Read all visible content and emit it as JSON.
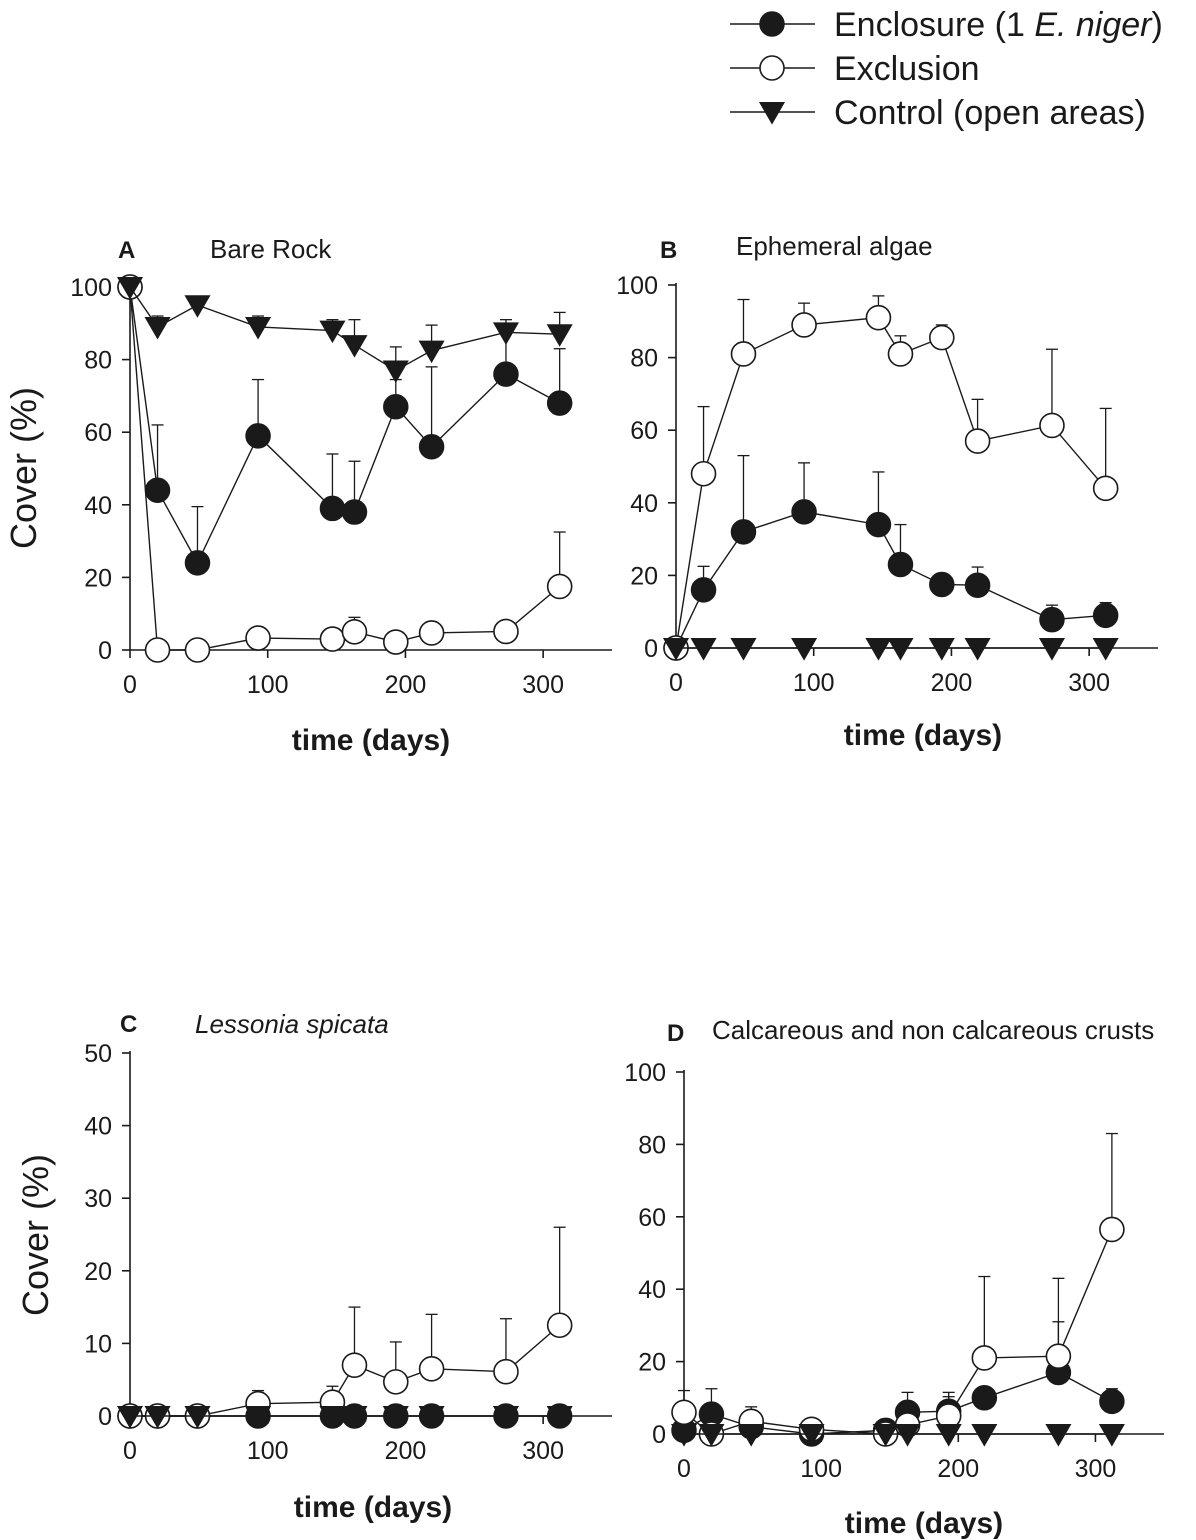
{
  "legend": {
    "placement": "top-right",
    "entries": [
      {
        "key": "enclosure",
        "label_pre": "Enclosure (1 ",
        "label_italic": "E. niger",
        "label_post": ")",
        "marker": "filled-circle"
      },
      {
        "key": "exclusion",
        "label_pre": "Exclusion",
        "label_italic": "",
        "label_post": "",
        "marker": "open-circle"
      },
      {
        "key": "control",
        "label_pre": "Control (open areas)",
        "label_italic": "",
        "label_post": "",
        "marker": "filled-down-triangle"
      }
    ]
  },
  "colors": {
    "ink": "#1a1a1a",
    "open_fill": "#ffffff"
  },
  "chart_data": [
    {
      "panel": "A",
      "title": "Bare Rock",
      "title_italic": false,
      "type": "line",
      "xlabel": "time (days)",
      "ylabel": "Cover (%)",
      "xlim": [
        0,
        350
      ],
      "ylim": [
        0,
        100
      ],
      "xticks": [
        0,
        100,
        200,
        300
      ],
      "yticks": [
        0,
        20,
        40,
        60,
        80,
        100
      ],
      "grid": false,
      "series": [
        {
          "name": "Enclosure (1 E. niger)",
          "marker": "filled-circle",
          "x": [
            0,
            20,
            49,
            93,
            147,
            163,
            193,
            219,
            273,
            312
          ],
          "y": [
            100,
            44,
            24,
            59,
            39,
            38,
            67,
            56,
            76,
            68
          ],
          "err": [
            0,
            18,
            15.5,
            15.5,
            15,
            14,
            7.5,
            22,
            12,
            15
          ]
        },
        {
          "name": "Exclusion",
          "marker": "open-circle",
          "x": [
            0,
            20,
            49,
            93,
            147,
            163,
            193,
            219,
            273,
            312
          ],
          "y": [
            100,
            0,
            0,
            3.3,
            3,
            5,
            2.2,
            4.7,
            5.1,
            17.5
          ],
          "err": [
            0,
            0,
            0,
            0,
            0,
            4,
            0,
            0,
            0,
            15
          ]
        },
        {
          "name": "Control (open areas)",
          "marker": "filled-down-triangle",
          "x": [
            0,
            20,
            49,
            93,
            147,
            163,
            193,
            219,
            273,
            312
          ],
          "y": [
            100,
            89,
            95,
            89,
            88,
            84,
            77,
            82.5,
            87.5,
            87
          ],
          "err": [
            0,
            3,
            2,
            3,
            3,
            7,
            6.5,
            7,
            3.5,
            6
          ]
        }
      ]
    },
    {
      "panel": "B",
      "title": "Ephemeral algae",
      "title_italic": false,
      "type": "line",
      "xlabel": "time (days)",
      "ylabel": "",
      "xlim": [
        0,
        350
      ],
      "ylim": [
        0,
        100
      ],
      "xticks": [
        0,
        100,
        200,
        300
      ],
      "yticks": [
        0,
        20,
        40,
        60,
        80,
        100
      ],
      "grid": false,
      "series": [
        {
          "name": "Enclosure (1 E. niger)",
          "marker": "filled-circle",
          "x": [
            0,
            20,
            49,
            93,
            147,
            163,
            193,
            219,
            273,
            312
          ],
          "y": [
            0,
            16,
            32,
            37.5,
            34,
            23,
            17.5,
            17.3,
            7.8,
            9
          ],
          "err": [
            0,
            6.5,
            21,
            13.5,
            14.5,
            11,
            0,
            5,
            4,
            3.5
          ]
        },
        {
          "name": "Exclusion",
          "marker": "open-circle",
          "x": [
            0,
            20,
            49,
            93,
            147,
            163,
            193,
            219,
            273,
            312
          ],
          "y": [
            0,
            48,
            81,
            89,
            91,
            81,
            85.5,
            57,
            61.3,
            44
          ],
          "err": [
            0,
            18.5,
            15,
            6,
            6,
            5,
            3.5,
            11.5,
            21,
            22
          ]
        },
        {
          "name": "Control (open areas)",
          "marker": "filled-down-triangle",
          "x": [
            0,
            20,
            49,
            93,
            147,
            163,
            193,
            219,
            273,
            312
          ],
          "y": [
            0,
            0,
            0,
            0,
            0,
            0,
            0,
            0,
            0,
            0
          ],
          "err": [
            0,
            0,
            0,
            0,
            0,
            0,
            0,
            0,
            0,
            0
          ]
        }
      ]
    },
    {
      "panel": "C",
      "title": "Lessonia spicata",
      "title_italic": true,
      "type": "line",
      "xlabel": "time (days)",
      "ylabel": "Cover (%)",
      "xlim": [
        0,
        350
      ],
      "ylim": [
        0,
        50
      ],
      "xticks": [
        0,
        100,
        200,
        300
      ],
      "yticks": [
        0,
        10,
        20,
        30,
        40,
        50
      ],
      "grid": false,
      "series": [
        {
          "name": "Enclosure (1 E. niger)",
          "marker": "filled-circle",
          "x": [
            0,
            20,
            49,
            93,
            147,
            163,
            193,
            219,
            273,
            312
          ],
          "y": [
            0,
            0,
            0,
            0,
            0,
            0,
            0,
            0,
            0,
            0
          ],
          "err": [
            0,
            0,
            0,
            0,
            0,
            0,
            0,
            0,
            0,
            0
          ]
        },
        {
          "name": "Exclusion",
          "marker": "open-circle",
          "x": [
            0,
            20,
            49,
            93,
            147,
            163,
            193,
            219,
            273,
            312
          ],
          "y": [
            0,
            0,
            0,
            1.7,
            1.9,
            7,
            4.7,
            6.5,
            6.1,
            12.5
          ],
          "err": [
            0,
            0,
            0,
            1.8,
            2.2,
            8,
            5.5,
            7.5,
            7.3,
            13.5
          ]
        },
        {
          "name": "Control (open areas)",
          "marker": "filled-down-triangle",
          "x": [
            0,
            20,
            49,
            93,
            147,
            163,
            193,
            219,
            273,
            312
          ],
          "y": [
            0,
            0,
            0,
            0,
            0,
            0,
            0,
            0,
            0,
            0
          ],
          "err": [
            0,
            0,
            0,
            0,
            0,
            0,
            0,
            0,
            0,
            0
          ]
        }
      ]
    },
    {
      "panel": "D",
      "title": "Calcareous and non calcareous crusts",
      "title_italic": false,
      "type": "line",
      "xlabel": "time (days)",
      "ylabel": "",
      "xlim": [
        0,
        350
      ],
      "ylim": [
        0,
        100
      ],
      "xticks": [
        0,
        100,
        200,
        300
      ],
      "yticks": [
        0,
        20,
        40,
        60,
        80,
        100
      ],
      "grid": false,
      "series": [
        {
          "name": "Enclosure (1 E. niger)",
          "marker": "filled-circle",
          "x": [
            0,
            20,
            49,
            93,
            147,
            163,
            193,
            219,
            273,
            312
          ],
          "y": [
            1,
            5.5,
            2,
            0,
            1,
            6,
            6.3,
            10,
            17,
            9
          ],
          "err": [
            0,
            7,
            3,
            0,
            0,
            5.5,
            4,
            0,
            14,
            3.5
          ]
        },
        {
          "name": "Exclusion",
          "marker": "open-circle",
          "x": [
            0,
            20,
            49,
            93,
            147,
            163,
            193,
            219,
            273,
            312
          ],
          "y": [
            6,
            0,
            3.5,
            1.3,
            0,
            2.5,
            5,
            21,
            21.5,
            56.5
          ],
          "err": [
            6,
            0,
            4,
            1.5,
            0,
            0,
            6.5,
            22.5,
            21.5,
            26.5
          ]
        },
        {
          "name": "Control (open areas)",
          "marker": "filled-down-triangle",
          "x": [
            0,
            20,
            49,
            93,
            147,
            163,
            193,
            219,
            273,
            312
          ],
          "y": [
            0,
            0,
            0,
            0,
            0,
            0,
            0,
            0,
            0,
            0
          ],
          "err": [
            0,
            0,
            0,
            0,
            0,
            0,
            0,
            0,
            0,
            0
          ]
        }
      ]
    }
  ]
}
